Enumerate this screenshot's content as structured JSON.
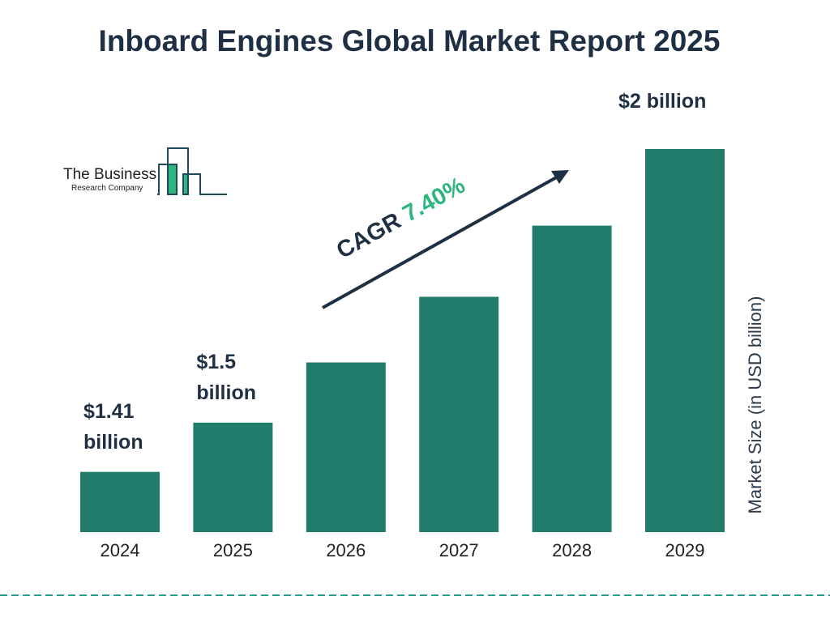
{
  "chart_data": {
    "type": "bar",
    "title": "Inboard Engines Global Market Report 2025",
    "categories": [
      "2024",
      "2025",
      "2026",
      "2027",
      "2028",
      "2029"
    ],
    "values": [
      1.41,
      1.5,
      1.61,
      1.73,
      1.86,
      2.0
    ],
    "data_labels": [
      {
        "index": 0,
        "line1": "$1.41",
        "line2": "billion"
      },
      {
        "index": 1,
        "line1": "$1.5",
        "line2": "billion"
      },
      {
        "index": 5,
        "line1": "$2 billion",
        "line2": ""
      }
    ],
    "ylabel": "Market Size (in USD billion)",
    "xlabel": "",
    "annotation": {
      "prefix": "CAGR",
      "value": "7.40%"
    },
    "grid": false,
    "bar_color": "#217c6b",
    "accent_color": "#2cb67d"
  },
  "logo": {
    "line1": "The Business",
    "line2": "Research Company"
  }
}
